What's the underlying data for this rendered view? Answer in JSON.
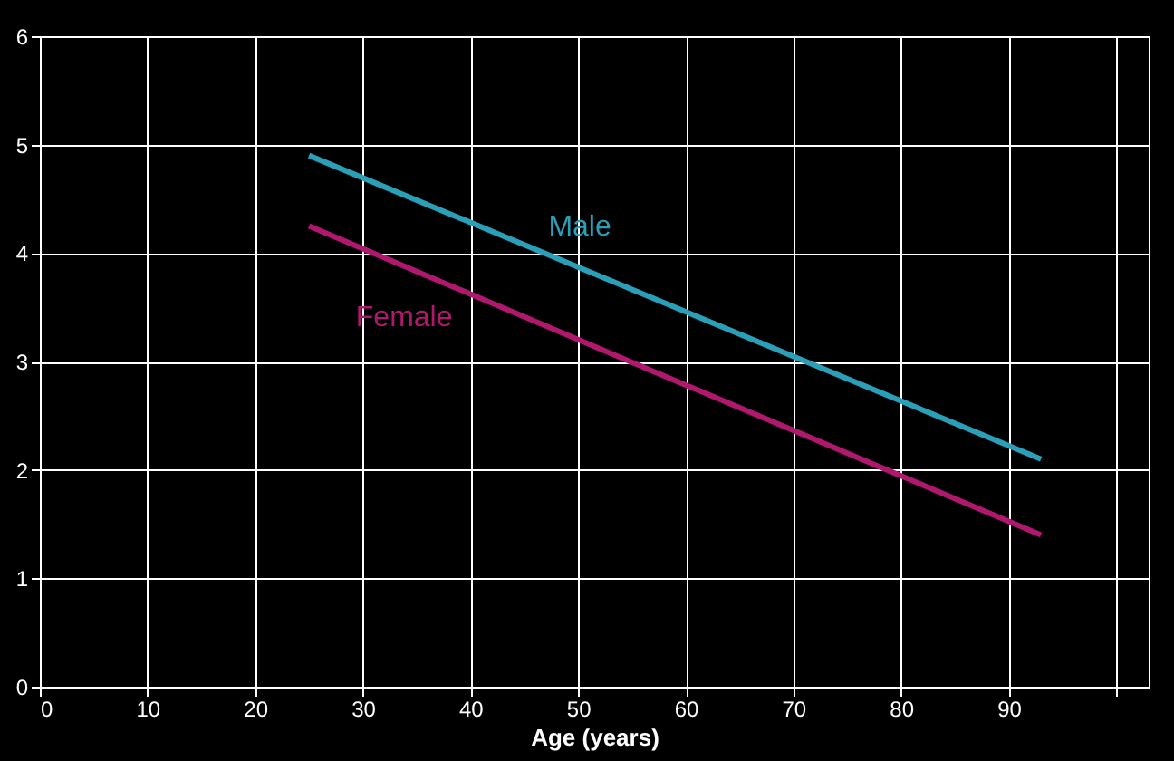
{
  "chart_data": {
    "type": "line",
    "xlabel": "Age (years)",
    "series": [
      {
        "name": "Male",
        "color": "#2a9fb8",
        "values": [
          4.9,
          2.1
        ]
      },
      {
        "name": "Female",
        "color": "#b0186e",
        "values": [
          4.25,
          1.4
        ]
      }
    ],
    "x": [
      25,
      93
    ],
    "xlim": [
      0,
      103
    ],
    "xticks": [
      0,
      10,
      20,
      30,
      40,
      50,
      60,
      70,
      80,
      90,
      {
        "value": 100,
        "label": null
      }
    ],
    "ylim": [
      0,
      6
    ],
    "yticks": [
      0,
      1,
      2,
      3,
      4,
      5,
      6
    ],
    "grid": true,
    "legend": false,
    "marker": "none",
    "line_style": "solid"
  }
}
